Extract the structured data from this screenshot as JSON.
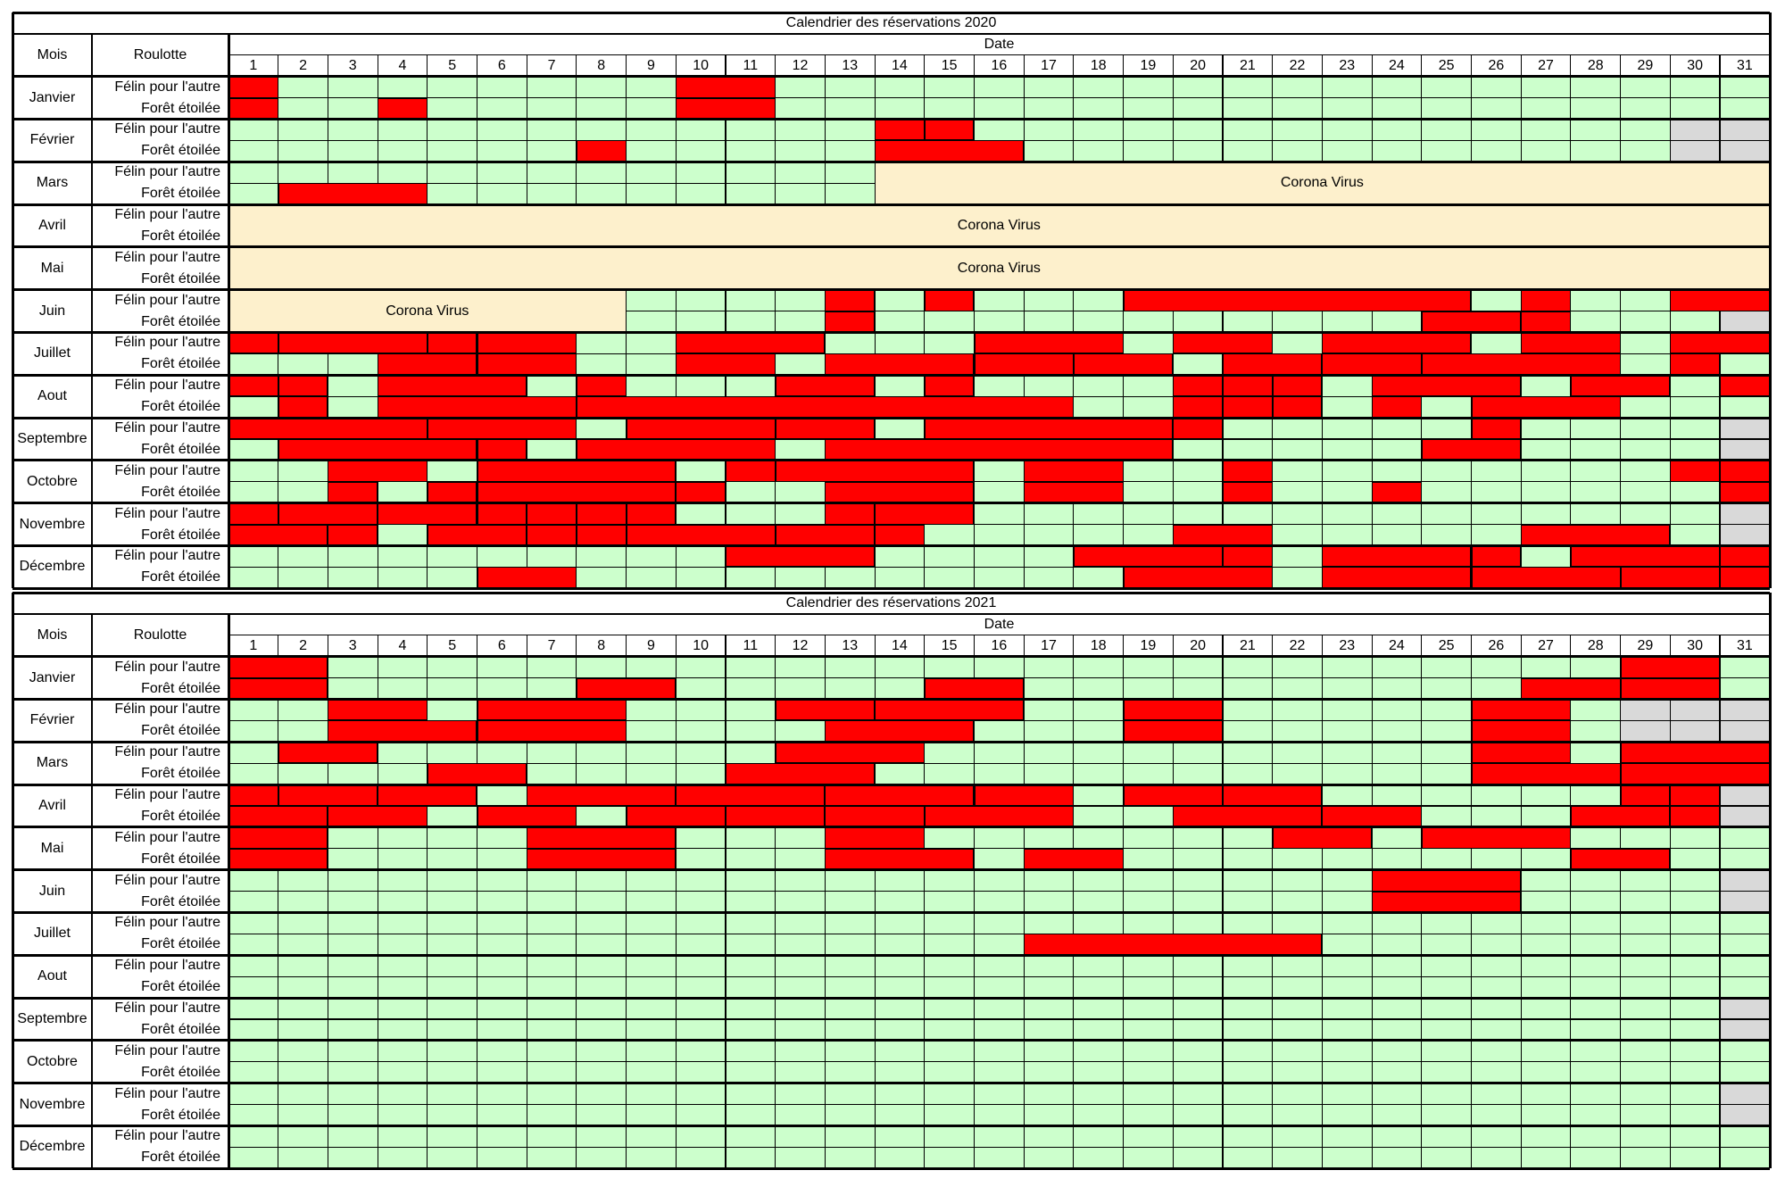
{
  "chart_data": {
    "type": "table",
    "colors": {
      "available": "#ccffcc",
      "reserved": "#ff0000",
      "corona": "#fdf0cc",
      "invalid_day": "#d9d9d9"
    },
    "legend": {
      "available": "",
      "reserved": "",
      "corona": "Corona Virus",
      "invalid_day": ""
    },
    "col_mois": "Mois",
    "col_roulotte": "Roulotte",
    "col_date": "Date",
    "days": [
      "1",
      "2",
      "3",
      "4",
      "5",
      "6",
      "7",
      "8",
      "9",
      "10",
      "11",
      "12",
      "13",
      "14",
      "15",
      "16",
      "17",
      "18",
      "19",
      "20",
      "21",
      "22",
      "23",
      "24",
      "25",
      "26",
      "27",
      "28",
      "29",
      "30",
      "31"
    ],
    "trailers": [
      "Félin pour l'autre",
      "Forêt étoilée"
    ],
    "months": [
      "Janvier",
      "Février",
      "Mars",
      "Avril",
      "Mai",
      "Juin",
      "Juillet",
      "Aout",
      "Septembre",
      "Octobre",
      "Novembre",
      "Décembre"
    ],
    "calendars": [
      {
        "title": "Calendrier des réservations 2020",
        "year": 2020,
        "corona_label": "Corona Virus",
        "corona": [
          {
            "month": 3,
            "trailers": [
              1,
              2
            ],
            "from": 14,
            "to": 31
          },
          {
            "month": 4,
            "trailers": [
              1,
              2
            ],
            "from": 1,
            "to": 31
          },
          {
            "month": 5,
            "trailers": [
              1,
              2
            ],
            "from": 1,
            "to": 31
          },
          {
            "month": 6,
            "trailers": [
              1,
              2
            ],
            "from": 1,
            "to": 8
          }
        ],
        "reservations": [
          {
            "month": 1,
            "trailer": 1,
            "segments": [
              [
                1,
                1
              ],
              [
                10,
                11
              ]
            ]
          },
          {
            "month": 1,
            "trailer": 2,
            "segments": [
              [
                1,
                1
              ],
              [
                4,
                4
              ],
              [
                10,
                11
              ]
            ]
          },
          {
            "month": 2,
            "trailer": 1,
            "segments": [
              [
                14,
                14
              ],
              [
                15,
                15
              ]
            ]
          },
          {
            "month": 2,
            "trailer": 2,
            "segments": [
              [
                8,
                8
              ],
              [
                14,
                16
              ]
            ]
          },
          {
            "month": 3,
            "trailer": 1,
            "segments": []
          },
          {
            "month": 3,
            "trailer": 2,
            "segments": [
              [
                2,
                4
              ]
            ]
          },
          {
            "month": 6,
            "trailer": 1,
            "segments": [
              [
                13,
                13
              ],
              [
                15,
                15
              ],
              [
                19,
                25
              ],
              [
                27,
                27
              ],
              [
                30,
                31
              ]
            ]
          },
          {
            "month": 6,
            "trailer": 2,
            "segments": [
              [
                13,
                13
              ],
              [
                25,
                26
              ],
              [
                27,
                27
              ]
            ]
          },
          {
            "month": 7,
            "trailer": 1,
            "segments": [
              [
                1,
                1
              ],
              [
                2,
                4
              ],
              [
                5,
                5
              ],
              [
                6,
                7
              ],
              [
                10,
                12
              ],
              [
                16,
                18
              ],
              [
                20,
                21
              ],
              [
                23,
                25
              ],
              [
                27,
                28
              ],
              [
                30,
                31
              ]
            ]
          },
          {
            "month": 7,
            "trailer": 2,
            "segments": [
              [
                4,
                5
              ],
              [
                6,
                7
              ],
              [
                10,
                11
              ],
              [
                13,
                15
              ],
              [
                16,
                17
              ],
              [
                18,
                19
              ],
              [
                21,
                22
              ],
              [
                23,
                24
              ],
              [
                25,
                28
              ],
              [
                30,
                30
              ]
            ]
          },
          {
            "month": 8,
            "trailer": 1,
            "segments": [
              [
                1,
                1
              ],
              [
                2,
                2
              ],
              [
                4,
                6
              ],
              [
                8,
                8
              ],
              [
                12,
                13
              ],
              [
                15,
                15
              ],
              [
                20,
                20
              ],
              [
                21,
                21
              ],
              [
                22,
                22
              ],
              [
                24,
                26
              ],
              [
                28,
                29
              ],
              [
                31,
                31
              ]
            ]
          },
          {
            "month": 8,
            "trailer": 2,
            "segments": [
              [
                2,
                2
              ],
              [
                4,
                7
              ],
              [
                8,
                17
              ],
              [
                20,
                20
              ],
              [
                21,
                21
              ],
              [
                22,
                22
              ],
              [
                24,
                24
              ],
              [
                26,
                28
              ]
            ]
          },
          {
            "month": 9,
            "trailer": 1,
            "segments": [
              [
                1,
                4
              ],
              [
                5,
                7
              ],
              [
                9,
                11
              ],
              [
                12,
                13
              ],
              [
                15,
                19
              ],
              [
                20,
                20
              ],
              [
                26,
                26
              ]
            ]
          },
          {
            "month": 9,
            "trailer": 2,
            "segments": [
              [
                2,
                5
              ],
              [
                6,
                6
              ],
              [
                8,
                11
              ],
              [
                13,
                19
              ],
              [
                25,
                26
              ]
            ]
          },
          {
            "month": 10,
            "trailer": 1,
            "segments": [
              [
                3,
                4
              ],
              [
                6,
                9
              ],
              [
                11,
                11
              ],
              [
                12,
                15
              ],
              [
                17,
                18
              ],
              [
                21,
                21
              ],
              [
                30,
                30
              ],
              [
                31,
                31
              ]
            ]
          },
          {
            "month": 10,
            "trailer": 2,
            "segments": [
              [
                3,
                3
              ],
              [
                5,
                5
              ],
              [
                6,
                9
              ],
              [
                10,
                10
              ],
              [
                13,
                15
              ],
              [
                17,
                18
              ],
              [
                21,
                21
              ],
              [
                24,
                24
              ],
              [
                31,
                31
              ]
            ]
          },
          {
            "month": 11,
            "trailer": 1,
            "segments": [
              [
                1,
                1
              ],
              [
                2,
                3
              ],
              [
                4,
                5
              ],
              [
                6,
                6
              ],
              [
                7,
                7
              ],
              [
                8,
                8
              ],
              [
                9,
                9
              ],
              [
                13,
                13
              ],
              [
                14,
                15
              ]
            ]
          },
          {
            "month": 11,
            "trailer": 2,
            "segments": [
              [
                1,
                2
              ],
              [
                3,
                3
              ],
              [
                5,
                6
              ],
              [
                7,
                7
              ],
              [
                8,
                8
              ],
              [
                9,
                11
              ],
              [
                12,
                13
              ],
              [
                14,
                14
              ],
              [
                20,
                21
              ],
              [
                27,
                29
              ]
            ]
          },
          {
            "month": 12,
            "trailer": 1,
            "segments": [
              [
                11,
                13
              ],
              [
                18,
                20
              ],
              [
                21,
                21
              ],
              [
                23,
                25
              ],
              [
                26,
                26
              ],
              [
                28,
                30
              ],
              [
                31,
                31
              ]
            ]
          },
          {
            "month": 12,
            "trailer": 2,
            "segments": [
              [
                6,
                7
              ],
              [
                19,
                21
              ],
              [
                23,
                25
              ],
              [
                26,
                28
              ],
              [
                29,
                30
              ],
              [
                31,
                31
              ]
            ]
          }
        ]
      },
      {
        "title": "Calendrier des réservations 2021",
        "year": 2021,
        "corona_label": "",
        "corona": [],
        "reservations": [
          {
            "month": 1,
            "trailer": 1,
            "segments": [
              [
                1,
                2
              ],
              [
                29,
                30
              ]
            ]
          },
          {
            "month": 1,
            "trailer": 2,
            "segments": [
              [
                1,
                2
              ],
              [
                8,
                9
              ],
              [
                15,
                16
              ],
              [
                27,
                28
              ],
              [
                29,
                30
              ]
            ]
          },
          {
            "month": 2,
            "trailer": 1,
            "segments": [
              [
                3,
                4
              ],
              [
                6,
                8
              ],
              [
                12,
                13
              ],
              [
                14,
                16
              ],
              [
                19,
                20
              ],
              [
                26,
                27
              ]
            ]
          },
          {
            "month": 2,
            "trailer": 2,
            "segments": [
              [
                3,
                5
              ],
              [
                6,
                8
              ],
              [
                13,
                15
              ],
              [
                19,
                20
              ],
              [
                26,
                27
              ]
            ]
          },
          {
            "month": 3,
            "trailer": 1,
            "segments": [
              [
                2,
                3
              ],
              [
                12,
                14
              ],
              [
                26,
                27
              ],
              [
                29,
                31
              ]
            ]
          },
          {
            "month": 3,
            "trailer": 2,
            "segments": [
              [
                5,
                6
              ],
              [
                11,
                13
              ],
              [
                26,
                28
              ],
              [
                29,
                31
              ]
            ]
          },
          {
            "month": 4,
            "trailer": 1,
            "segments": [
              [
                1,
                1
              ],
              [
                2,
                3
              ],
              [
                4,
                5
              ],
              [
                7,
                9
              ],
              [
                10,
                12
              ],
              [
                13,
                15
              ],
              [
                16,
                17
              ],
              [
                19,
                20
              ],
              [
                21,
                22
              ],
              [
                29,
                29
              ],
              [
                30,
                30
              ]
            ]
          },
          {
            "month": 4,
            "trailer": 2,
            "segments": [
              [
                1,
                2
              ],
              [
                3,
                4
              ],
              [
                6,
                7
              ],
              [
                9,
                10
              ],
              [
                11,
                12
              ],
              [
                13,
                14
              ],
              [
                15,
                17
              ],
              [
                20,
                22
              ],
              [
                23,
                24
              ],
              [
                28,
                29
              ],
              [
                30,
                30
              ]
            ]
          },
          {
            "month": 5,
            "trailer": 1,
            "segments": [
              [
                1,
                2
              ],
              [
                7,
                9
              ],
              [
                13,
                14
              ],
              [
                22,
                23
              ],
              [
                25,
                27
              ]
            ]
          },
          {
            "month": 5,
            "trailer": 2,
            "segments": [
              [
                1,
                2
              ],
              [
                7,
                9
              ],
              [
                13,
                15
              ],
              [
                17,
                18
              ],
              [
                28,
                29
              ]
            ]
          },
          {
            "month": 6,
            "trailer": 1,
            "segments": [
              [
                24,
                26
              ]
            ]
          },
          {
            "month": 6,
            "trailer": 2,
            "segments": [
              [
                24,
                26
              ]
            ]
          },
          {
            "month": 7,
            "trailer": 1,
            "segments": []
          },
          {
            "month": 7,
            "trailer": 2,
            "segments": [
              [
                17,
                22
              ]
            ]
          },
          {
            "month": 8,
            "trailer": 1,
            "segments": []
          },
          {
            "month": 8,
            "trailer": 2,
            "segments": []
          },
          {
            "month": 9,
            "trailer": 1,
            "segments": []
          },
          {
            "month": 9,
            "trailer": 2,
            "segments": []
          },
          {
            "month": 10,
            "trailer": 1,
            "segments": []
          },
          {
            "month": 10,
            "trailer": 2,
            "segments": []
          },
          {
            "month": 11,
            "trailer": 1,
            "segments": []
          },
          {
            "month": 11,
            "trailer": 2,
            "segments": []
          },
          {
            "month": 12,
            "trailer": 1,
            "segments": []
          },
          {
            "month": 12,
            "trailer": 2,
            "segments": []
          }
        ]
      }
    ]
  }
}
